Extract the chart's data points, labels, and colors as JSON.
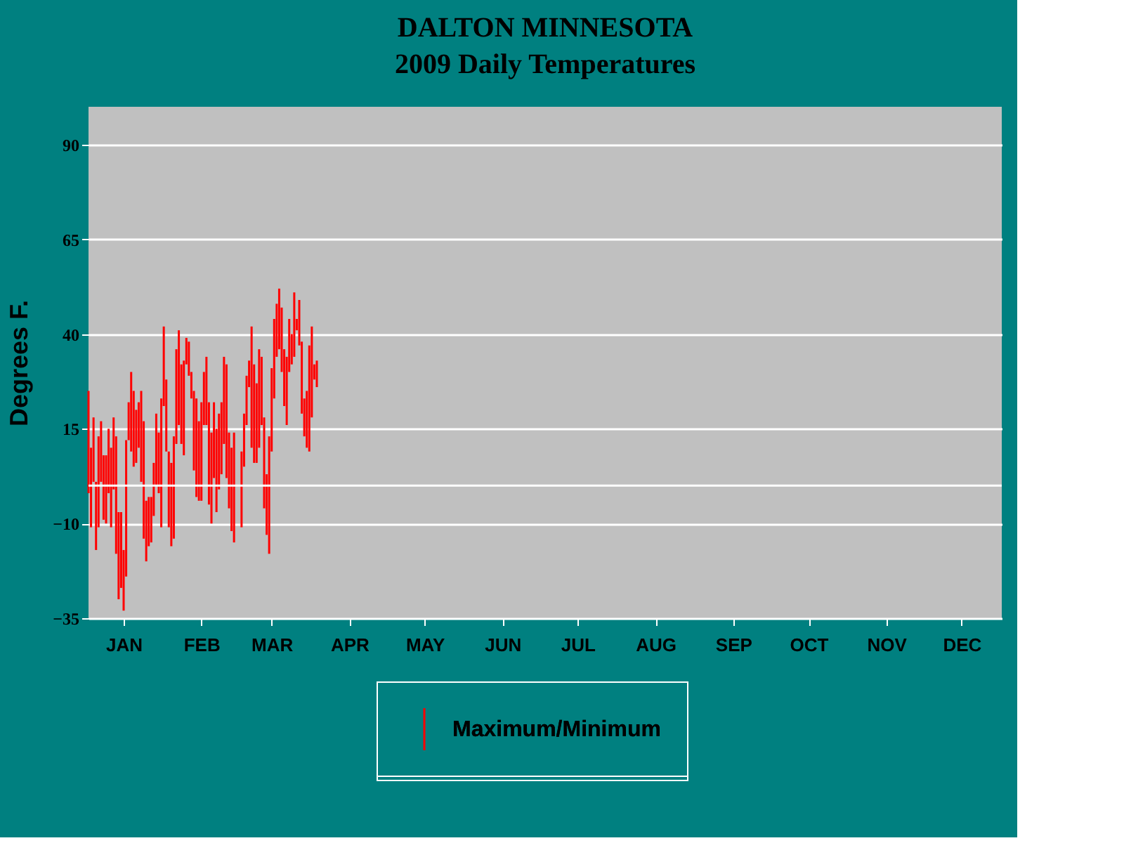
{
  "chart_data": {
    "type": "bar",
    "title": "DALTON MINNESOTA",
    "subtitle": "2009 Daily Temperatures",
    "ylabel": "Degrees F.",
    "x": [
      "2009-01-01",
      "2009-01-02",
      "2009-01-03",
      "2009-01-04",
      "2009-01-05",
      "2009-01-06",
      "2009-01-07",
      "2009-01-08",
      "2009-01-09",
      "2009-01-10",
      "2009-01-11",
      "2009-01-12",
      "2009-01-13",
      "2009-01-14",
      "2009-01-15",
      "2009-01-16",
      "2009-01-17",
      "2009-01-18",
      "2009-01-19",
      "2009-01-20",
      "2009-01-21",
      "2009-01-22",
      "2009-01-23",
      "2009-01-24",
      "2009-01-25",
      "2009-01-26",
      "2009-01-27",
      "2009-01-28",
      "2009-01-29",
      "2009-01-30",
      "2009-01-31",
      "2009-02-01",
      "2009-02-02",
      "2009-02-03",
      "2009-02-04",
      "2009-02-05",
      "2009-02-06",
      "2009-02-07",
      "2009-02-08",
      "2009-02-09",
      "2009-02-10",
      "2009-02-11",
      "2009-02-12",
      "2009-02-13",
      "2009-02-14",
      "2009-02-15",
      "2009-02-16",
      "2009-02-17",
      "2009-02-18",
      "2009-02-19",
      "2009-02-20",
      "2009-02-21",
      "2009-02-22",
      "2009-02-23",
      "2009-02-24",
      "2009-02-25",
      "2009-02-26",
      "2009-02-27",
      "2009-02-28",
      "2009-03-01",
      "2009-03-02",
      "2009-03-03",
      "2009-03-04",
      "2009-03-05",
      "2009-03-06",
      "2009-03-07",
      "2009-03-08",
      "2009-03-09",
      "2009-03-10",
      "2009-03-11",
      "2009-03-12",
      "2009-03-13",
      "2009-03-14",
      "2009-03-15",
      "2009-03-16",
      "2009-03-17",
      "2009-03-18",
      "2009-03-19",
      "2009-03-20",
      "2009-03-21",
      "2009-03-22",
      "2009-03-23",
      "2009-03-24",
      "2009-03-25",
      "2009-03-26",
      "2009-03-27",
      "2009-03-28",
      "2009-03-29",
      "2009-03-30",
      "2009-03-31",
      "2009-04-01",
      "2009-04-02"
    ],
    "series": [
      {
        "name": "Maximum/Minimum",
        "color": "#ff0000",
        "base": [
          -2,
          -11,
          1,
          -17,
          -11,
          1,
          -9,
          -10,
          -2,
          -11,
          -1,
          -18,
          -30,
          -27,
          -33,
          -24,
          12,
          9,
          5,
          6,
          10,
          1,
          -14,
          -20,
          -16,
          -15,
          -8,
          0,
          -2,
          -11,
          21,
          9,
          -11,
          -16,
          -14,
          11,
          16,
          11,
          8,
          32,
          29,
          23,
          4,
          -3,
          -4,
          -4,
          16,
          16,
          -5,
          -10,
          2,
          -7,
          -1,
          3,
          11,
          2,
          -6,
          -12,
          -15,
          null,
          null,
          -11,
          5,
          16,
          26,
          10,
          6,
          6,
          10,
          16,
          -6,
          -13,
          -18,
          9,
          23,
          34,
          36,
          30,
          21,
          16,
          30,
          32,
          34,
          41,
          37,
          19,
          13,
          10,
          9,
          18,
          28,
          26
        ],
        "values": [
          27,
          21,
          17,
          18,
          24,
          16,
          17,
          18,
          17,
          21,
          19,
          31,
          23,
          20,
          16,
          36,
          10,
          21,
          20,
          14,
          12,
          24,
          31,
          16,
          13,
          12,
          14,
          19,
          16,
          34,
          21,
          19,
          20,
          22,
          27,
          25,
          25,
          21,
          25,
          7,
          9,
          7,
          21,
          26,
          21,
          26,
          14,
          18,
          27,
          24,
          20,
          22,
          20,
          19,
          23,
          30,
          20,
          22,
          29,
          null,
          null,
          20,
          14,
          13,
          7,
          32,
          26,
          21,
          26,
          18,
          24,
          16,
          31,
          22,
          21,
          14,
          16,
          17,
          15,
          18,
          14,
          8,
          17,
          3,
          12,
          19,
          10,
          15,
          28,
          24,
          4,
          7
        ]
      }
    ],
    "xlim": [
      "2009-01-01",
      "2009-12-31"
    ],
    "xticks": [
      {
        "value": "2009-01-15",
        "label": "JAN"
      },
      {
        "value": "2009-02-15",
        "label": "FEB"
      },
      {
        "value": "2009-03-15",
        "label": "MAR"
      },
      {
        "value": "2009-04-15",
        "label": "APR"
      },
      {
        "value": "2009-05-15",
        "label": "MAY"
      },
      {
        "value": "2009-06-15",
        "label": "JUN"
      },
      {
        "value": "2009-07-15",
        "label": "JUL"
      },
      {
        "value": "2009-08-15",
        "label": "AUG"
      },
      {
        "value": "2009-09-15",
        "label": "SEP"
      },
      {
        "value": "2009-10-15",
        "label": "OCT"
      },
      {
        "value": "2009-11-15",
        "label": "NOV"
      },
      {
        "value": "2009-12-15",
        "label": "DEC"
      }
    ],
    "ylim": [
      -35,
      100
    ],
    "yticks": [
      -35,
      -10,
      15,
      40,
      65,
      90
    ],
    "ref_lines": [
      {
        "axis": "y",
        "value": 0,
        "color": "#ffffff"
      }
    ],
    "grid": "y",
    "legend": "bottom"
  }
}
